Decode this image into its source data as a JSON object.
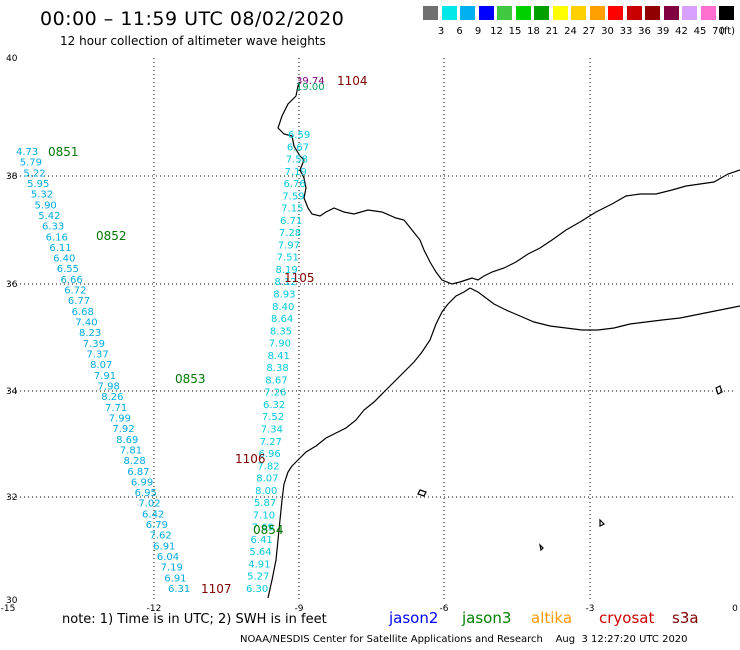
{
  "title": "00:00 – 11:59 UTC 08/02/2020",
  "subtitle": "12 hour collection of altimeter wave heights",
  "colorbar": {
    "colors": [
      "#707070",
      "#00e8e8",
      "#00b0f0",
      "#0000ff",
      "#40c840",
      "#00d000",
      "#00a000",
      "#ffff00",
      "#ffd000",
      "#ffa000",
      "#ff0000",
      "#c80000",
      "#900000",
      "#800040",
      "#d8a0ff",
      "#ff70d0",
      "#000000"
    ],
    "labels": [
      "3",
      "6",
      "9",
      "12",
      "15",
      "18",
      "21",
      "24",
      "27",
      "30",
      "33",
      "36",
      "39",
      "42",
      "45",
      "70"
    ],
    "unit": "(ft)"
  },
  "axes": {
    "x_ticks": [
      "-15",
      "-12",
      "-9",
      "-6",
      "-3",
      "0"
    ],
    "y_ticks": [
      "40",
      "38",
      "36",
      "34",
      "32",
      "30"
    ]
  },
  "tracks": {
    "west": [
      "4.73",
      "5.79",
      "5.22",
      "5.95",
      "5.32",
      "5.90",
      "5.42",
      "6.33",
      "6.16",
      "6.11",
      "6.40",
      "6.55",
      "6.66",
      "6.72",
      "6.77",
      "6.68",
      "7.40",
      "8.23",
      "7.39",
      "7.37",
      "8.07",
      "7.91",
      "7.98",
      "8.26",
      "7.71",
      "7.99",
      "7.92",
      "8.69",
      "7.81",
      "8.28",
      "6.87",
      "6.99",
      "6.95",
      "7.02",
      "6.42",
      "6.79",
      "7.62",
      "6.91",
      "6.04",
      "7.19",
      "6.91",
      "6.31"
    ],
    "east": [
      "6.59",
      "6.67",
      "7.58",
      "7.19",
      "6.76",
      "7.59",
      "7.15",
      "6.71",
      "7.28",
      "7.97",
      "7.51",
      "8.19",
      "8.12",
      "8.93",
      "8.40",
      "8.64",
      "8.35",
      "7.90",
      "8.41",
      "8.38",
      "8.67",
      "7.26",
      "6.32",
      "7.52",
      "7.34",
      "7.27",
      "6.96",
      "7.82",
      "8.07",
      "8.00",
      "5.87",
      "7.10",
      "7.69",
      "6.41",
      "5.64",
      "4.91",
      "5.27",
      "6.30"
    ]
  },
  "track_times": [
    {
      "label": "0851",
      "color": "#007700"
    },
    {
      "label": "0852",
      "color": "#007700"
    },
    {
      "label": "0853",
      "color": "#007700"
    },
    {
      "label": "0854",
      "color": "#007700"
    },
    {
      "label": "1104",
      "color": "#800000"
    },
    {
      "label": "1105",
      "color": "#800000"
    },
    {
      "label": "1106",
      "color": "#800000"
    },
    {
      "label": "1107",
      "color": "#800000"
    }
  ],
  "top_values": [
    "39.74",
    "19.00"
  ],
  "note": "note:  1) Time is in UTC;  2) SWH is in feet",
  "satellites": [
    {
      "name": "jason2",
      "color": "#0000ff"
    },
    {
      "name": "jason3",
      "color": "#008000"
    },
    {
      "name": "altika",
      "color": "#ff9900"
    },
    {
      "name": "cryosat",
      "color": "#cc0000"
    },
    {
      "name": "s3a",
      "color": "#800000"
    }
  ],
  "credit": "NOAA/NESDIS Center for Satellite Applications and Research    Aug  3 12:27:20 UTC 2020"
}
